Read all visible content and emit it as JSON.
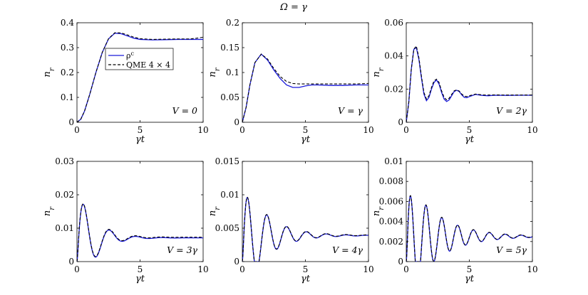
{
  "figure": {
    "title": "Ω = γ"
  },
  "chart_data": [
    {
      "type": "line",
      "xlabel": "γt",
      "ylabel": "n_r",
      "xlim": [
        0,
        10
      ],
      "ylim": [
        0,
        0.4
      ],
      "xticks": [
        0,
        5,
        10
      ],
      "yticks": [
        0,
        0.1,
        0.2,
        0.3,
        0.4
      ],
      "ytick_labels": [
        "0",
        "0.1",
        "0.2",
        "0.3",
        "0.4"
      ],
      "annotation": "V = 0",
      "legend": {
        "placement": "upper-left",
        "entries": [
          "ρ^c",
          "QME 4 × 4"
        ]
      },
      "series": [
        {
          "name": "ρ^c",
          "style": "solid",
          "color": "#1a1adb",
          "x": [
            0,
            0.3,
            0.6,
            1.0,
            1.5,
            2.0,
            2.5,
            3.0,
            3.5,
            4.0,
            4.5,
            5.0,
            6.0,
            7.0,
            8.0,
            9.0,
            10.0
          ],
          "y": [
            0,
            0.012,
            0.045,
            0.11,
            0.2,
            0.28,
            0.335,
            0.358,
            0.356,
            0.347,
            0.338,
            0.333,
            0.331,
            0.332,
            0.333,
            0.333,
            0.333
          ]
        },
        {
          "name": "QME 4 × 4",
          "style": "dashed",
          "color": "#000000",
          "x": [
            0,
            0.3,
            0.6,
            1.0,
            1.5,
            2.0,
            2.5,
            3.0,
            3.5,
            4.0,
            4.5,
            5.0,
            6.0,
            7.0,
            8.0,
            9.0,
            9.5,
            10.0
          ],
          "y": [
            0,
            0.012,
            0.045,
            0.11,
            0.2,
            0.28,
            0.336,
            0.36,
            0.359,
            0.351,
            0.342,
            0.336,
            0.333,
            0.334,
            0.335,
            0.335,
            0.338,
            0.342
          ]
        }
      ]
    },
    {
      "type": "line",
      "xlabel": "γt",
      "ylabel": "n_r",
      "xlim": [
        0,
        10
      ],
      "ylim": [
        0,
        0.2
      ],
      "xticks": [
        0,
        5,
        10
      ],
      "yticks": [
        0,
        0.05,
        0.1,
        0.15,
        0.2
      ],
      "ytick_labels": [
        "0",
        "0.05",
        "0.1",
        "0.15",
        "0.2"
      ],
      "annotation": "V = γ",
      "series": [
        {
          "name": "ρ^c",
          "style": "solid",
          "color": "#1a1adb",
          "x": [
            0,
            0.3,
            0.6,
            1.0,
            1.5,
            2.0,
            2.5,
            3.0,
            3.5,
            4.0,
            4.5,
            5.0,
            5.5,
            6.0,
            7.0,
            8.0,
            9.0,
            10.0
          ],
          "y": [
            0,
            0.03,
            0.075,
            0.12,
            0.137,
            0.125,
            0.105,
            0.088,
            0.075,
            0.07,
            0.07,
            0.073,
            0.075,
            0.075,
            0.074,
            0.074,
            0.075,
            0.075
          ]
        },
        {
          "name": "QME 4 × 4",
          "style": "dashed",
          "color": "#000000",
          "x": [
            0,
            0.3,
            0.6,
            1.0,
            1.5,
            2.0,
            2.5,
            3.0,
            3.5,
            4.0,
            4.5,
            5.0,
            6.0,
            7.0,
            8.0,
            9.0,
            10.0
          ],
          "y": [
            0,
            0.03,
            0.075,
            0.12,
            0.137,
            0.127,
            0.108,
            0.092,
            0.082,
            0.078,
            0.077,
            0.077,
            0.077,
            0.077,
            0.077,
            0.077,
            0.078
          ]
        }
      ]
    },
    {
      "type": "line",
      "xlabel": "γt",
      "ylabel": "n_r",
      "xlim": [
        0,
        10
      ],
      "ylim": [
        0,
        0.06
      ],
      "xticks": [
        0,
        5,
        10
      ],
      "yticks": [
        0,
        0.02,
        0.04,
        0.06
      ],
      "ytick_labels": [
        "0",
        "0.02",
        "0.04",
        "0.06"
      ],
      "annotation": "V = 2γ",
      "series": [
        {
          "name": "ρ^c",
          "style": "solid",
          "color": "#1a1adb",
          "x": [
            0,
            0.2,
            0.4,
            0.6,
            0.8,
            1.0,
            1.2,
            1.4,
            1.6,
            1.8,
            2.0,
            2.2,
            2.4,
            2.6,
            2.8,
            3.0,
            3.2,
            3.4,
            3.6,
            3.8,
            4.0,
            4.2,
            4.4,
            4.6,
            4.8,
            5.0,
            5.5,
            6.0,
            6.5,
            7.0,
            8.0,
            9.0,
            10.0
          ],
          "y": [
            0,
            0.012,
            0.032,
            0.044,
            0.045,
            0.038,
            0.027,
            0.017,
            0.013,
            0.015,
            0.02,
            0.024,
            0.0255,
            0.023,
            0.018,
            0.014,
            0.0125,
            0.0135,
            0.016,
            0.0185,
            0.0193,
            0.0185,
            0.0165,
            0.015,
            0.0148,
            0.0155,
            0.0168,
            0.0162,
            0.016,
            0.0163,
            0.0162,
            0.0163,
            0.0163
          ]
        },
        {
          "name": "QME 4 × 4",
          "style": "dashed",
          "color": "#000000",
          "x": [
            0,
            0.2,
            0.4,
            0.6,
            0.8,
            1.0,
            1.2,
            1.4,
            1.6,
            1.8,
            2.0,
            2.2,
            2.4,
            2.6,
            2.8,
            3.0,
            3.2,
            3.4,
            3.6,
            3.8,
            4.0,
            4.2,
            4.4,
            4.6,
            4.8,
            5.0,
            5.5,
            6.0,
            6.5,
            7.0,
            8.0,
            9.0,
            10.0
          ],
          "y": [
            0,
            0.012,
            0.032,
            0.044,
            0.046,
            0.039,
            0.028,
            0.018,
            0.014,
            0.016,
            0.021,
            0.025,
            0.026,
            0.024,
            0.019,
            0.015,
            0.0135,
            0.0145,
            0.0168,
            0.019,
            0.0195,
            0.0188,
            0.017,
            0.0157,
            0.0155,
            0.016,
            0.017,
            0.0165,
            0.0164,
            0.0165,
            0.0164,
            0.0164,
            0.0164
          ]
        }
      ]
    },
    {
      "type": "line",
      "xlabel": "γt",
      "ylabel": "n_r",
      "xlim": [
        0,
        10
      ],
      "ylim": [
        0,
        0.03
      ],
      "xticks": [
        0,
        5,
        10
      ],
      "yticks": [
        0,
        0.01,
        0.02,
        0.03
      ],
      "ytick_labels": [
        "0",
        "0.01",
        "0.02",
        "0.03"
      ],
      "annotation": "V = 3γ",
      "damped": {
        "amp": 0.0186,
        "freq": 3.0,
        "decay": 0.8,
        "off": 0.0071,
        "env_peak": 0.0224
      },
      "series": [
        {
          "name": "ρ^c",
          "style": "solid",
          "color": "#1a1adb",
          "offset_shift": 0.0
        },
        {
          "name": "QME 4 × 4",
          "style": "dashed",
          "color": "#000000",
          "offset_shift": 0.0002
        }
      ]
    },
    {
      "type": "line",
      "xlabel": "γt",
      "ylabel": "n_r",
      "xlim": [
        0,
        10
      ],
      "ylim": [
        0,
        0.015
      ],
      "xticks": [
        0,
        5,
        10
      ],
      "yticks": [
        0,
        0.005,
        0.01,
        0.015
      ],
      "ytick_labels": [
        "0",
        "0.005",
        "0.01",
        "0.015"
      ],
      "annotation": "V = 4γ",
      "damped": {
        "amp": 0.0092,
        "freq": 4.0,
        "decay": 0.55,
        "off": 0.0039,
        "env_peak": 0.0131
      },
      "series": [
        {
          "name": "ρ^c",
          "style": "solid",
          "color": "#1a1adb",
          "offset_shift": 0.0
        },
        {
          "name": "QME 4 × 4",
          "style": "dashed",
          "color": "#000000",
          "offset_shift": 5e-05
        }
      ]
    },
    {
      "type": "line",
      "xlabel": "γt",
      "ylabel": "n_r",
      "xlim": [
        0,
        10
      ],
      "ylim": [
        0,
        0.01
      ],
      "xticks": [
        0,
        5,
        10
      ],
      "yticks": [
        0,
        0.002,
        0.004,
        0.006,
        0.008,
        0.01
      ],
      "ytick_labels": [
        "0",
        "0.002",
        "0.004",
        "0.006",
        "0.008",
        "0.01"
      ],
      "annotation": "V = 5γ",
      "damped": {
        "amp": 0.0062,
        "freq": 5.0,
        "decay": 0.42,
        "off": 0.0025,
        "env_peak": 0.0087
      },
      "series": [
        {
          "name": "ρ^c",
          "style": "solid",
          "color": "#1a1adb",
          "offset_shift": 0.0
        },
        {
          "name": "QME 4 × 4",
          "style": "dashed",
          "color": "#000000",
          "offset_shift": 3e-05
        }
      ]
    }
  ]
}
